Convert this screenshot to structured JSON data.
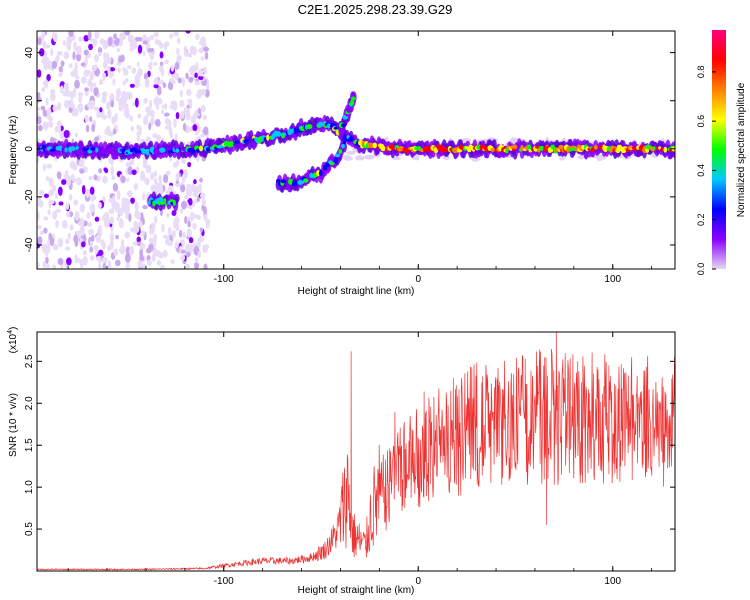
{
  "title": "C2E1.2025.298.23.39.G29",
  "chart_data": [
    {
      "type": "heatmap",
      "xlabel": "Height of straight line (km)",
      "ylabel": "Frequency (Hz)",
      "xlim": [
        -196,
        132
      ],
      "ylim": [
        -50,
        49
      ],
      "xticks": [
        -100,
        0,
        100
      ],
      "xtick_labels": [
        "-100",
        "0",
        "100"
      ],
      "yticks": [
        -40,
        -20,
        0,
        20,
        40
      ],
      "ytick_labels": [
        "-40",
        "-20",
        "0",
        "20",
        "40"
      ],
      "colorbar": {
        "label": "Normalized spectral amplitude",
        "range": [
          0,
          0.97
        ],
        "ticks": [
          0.0,
          0.2,
          0.4,
          0.6,
          0.8
        ],
        "tick_labels": [
          "0.0",
          "0.2",
          "0.4",
          "0.6",
          "0.8"
        ],
        "colors": [
          "#e6d6f2",
          "#8a00ff",
          "#0000ff",
          "#00c8ff",
          "#00ff00",
          "#ffff00",
          "#ff8000",
          "#ff0000",
          "#ff0080"
        ]
      },
      "tracks": [
        {
          "name": "main-trace",
          "points": [
            [
              -196,
              0
            ],
            [
              -150,
              -1
            ],
            [
              -110,
              0
            ],
            [
              -90,
              3
            ],
            [
              -70,
              6
            ],
            [
              -55,
              10
            ],
            [
              -45,
              10
            ],
            [
              -38,
              5
            ],
            [
              -30,
              2
            ],
            [
              -10,
              0
            ],
            [
              20,
              0
            ],
            [
              60,
              0
            ],
            [
              100,
              0
            ],
            [
              132,
              0
            ]
          ]
        },
        {
          "name": "rising-branch",
          "points": [
            [
              -40,
              8
            ],
            [
              -36,
              15
            ],
            [
              -33,
              22
            ]
          ]
        },
        {
          "name": "falling-branch",
          "points": [
            [
              -72,
              -14
            ],
            [
              -62,
              -14
            ],
            [
              -50,
              -10
            ],
            [
              -42,
              -4
            ],
            [
              -38,
              2
            ]
          ]
        },
        {
          "name": "isolated-echo",
          "points": [
            [
              -138,
              -22
            ],
            [
              -124,
              -22
            ]
          ]
        }
      ]
    },
    {
      "type": "line",
      "xlabel": "Height of straight line (km)",
      "ylabel": "SNR (10 * v/v)",
      "multiplier_label": "(x10",
      "multiplier_exp": "4",
      "multiplier_close": ")",
      "xlim": [
        -196,
        132
      ],
      "ylim": [
        0,
        2.85
      ],
      "xticks": [
        -100,
        0,
        100
      ],
      "xtick_labels": [
        "-100",
        "0",
        "100"
      ],
      "yticks": [
        0.5,
        1.0,
        1.5,
        2.0,
        2.5
      ],
      "ytick_labels": [
        "0.5",
        "1.0",
        "1.5",
        "2.0",
        "2.5"
      ],
      "color": "#ee3333",
      "envelope": [
        [
          -196,
          0.02
        ],
        [
          -140,
          0.02
        ],
        [
          -110,
          0.03
        ],
        [
          -95,
          0.08
        ],
        [
          -80,
          0.12
        ],
        [
          -65,
          0.12
        ],
        [
          -55,
          0.16
        ],
        [
          -48,
          0.25
        ],
        [
          -42,
          0.45
        ],
        [
          -38,
          0.8
        ],
        [
          -36,
          1.0
        ],
        [
          -34,
          0.45
        ],
        [
          -30,
          0.35
        ],
        [
          -27,
          0.3
        ],
        [
          -24,
          0.7
        ],
        [
          -20,
          0.9
        ],
        [
          -10,
          1.2
        ],
        [
          0,
          1.35
        ],
        [
          10,
          1.5
        ],
        [
          20,
          1.62
        ],
        [
          30,
          1.72
        ],
        [
          40,
          1.78
        ],
        [
          50,
          1.82
        ],
        [
          60,
          1.85
        ],
        [
          70,
          1.86
        ],
        [
          80,
          1.85
        ],
        [
          90,
          1.84
        ],
        [
          100,
          1.82
        ],
        [
          110,
          1.8
        ],
        [
          120,
          1.79
        ],
        [
          132,
          1.79
        ]
      ],
      "spikes": [
        [
          -34.5,
          2.62
        ],
        [
          71,
          2.85
        ],
        [
          41,
          2.42
        ],
        [
          55,
          2.53
        ],
        [
          65,
          2.55
        ],
        [
          82,
          2.5
        ],
        [
          98,
          2.45
        ],
        [
          108,
          2.33
        ],
        [
          18,
          2.3
        ],
        [
          3,
          2.14
        ],
        [
          -12,
          1.9
        ],
        [
          66,
          0.55
        ]
      ]
    }
  ]
}
